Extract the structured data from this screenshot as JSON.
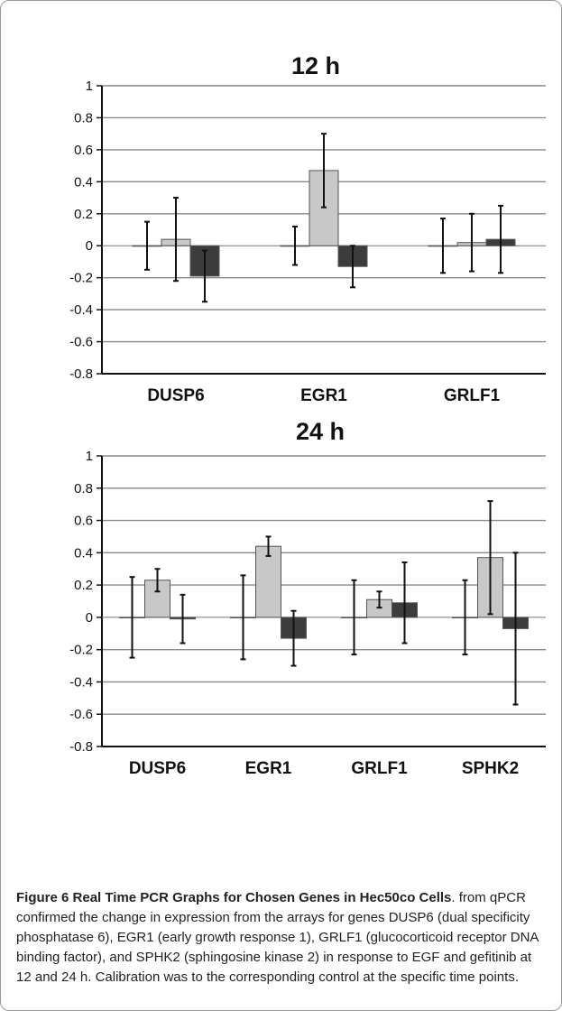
{
  "chart_data": [
    {
      "type": "bar",
      "title": "12 h",
      "categories": [
        "DUSP6",
        "EGR1",
        "GRLF1"
      ],
      "ylim": [
        -0.8,
        1
      ],
      "yticks": [
        "1",
        "0.8",
        "0.6",
        "0.4",
        "0.2",
        "0",
        "-0.2",
        "-0.4",
        "-0.6",
        "-0.8"
      ],
      "grid": true,
      "series": [
        {
          "values": [
            0,
            0,
            0
          ],
          "errors": [
            0.15,
            0.12,
            0.17
          ],
          "color": "#ffffff"
        },
        {
          "values": [
            0.04,
            0.47,
            0.02
          ],
          "errors": [
            0.26,
            0.23,
            0.18
          ],
          "color": "#c8c8c8"
        },
        {
          "values": [
            -0.19,
            -0.13,
            0.04
          ],
          "errors": [
            0.16,
            0.13,
            0.21
          ],
          "color": "#3c3c3c"
        }
      ]
    },
    {
      "type": "bar",
      "title": "24 h",
      "categories": [
        "DUSP6",
        "EGR1",
        "GRLF1",
        "SPHK2"
      ],
      "ylim": [
        -0.8,
        1
      ],
      "yticks": [
        "1",
        "0.8",
        "0.6",
        "0.4",
        "0.2",
        "0",
        "-0.2",
        "-0.4",
        "-0.6",
        "-0.8"
      ],
      "grid": true,
      "series": [
        {
          "values": [
            0,
            0,
            0,
            0
          ],
          "errors": [
            0.25,
            0.26,
            0.23,
            0.23
          ],
          "color": "#ffffff"
        },
        {
          "values": [
            0.23,
            0.44,
            0.11,
            0.37
          ],
          "errors": [
            0.07,
            0.06,
            0.05,
            0.35
          ],
          "color": "#c8c8c8"
        },
        {
          "values": [
            -0.01,
            -0.13,
            0.09,
            -0.07
          ],
          "errors": [
            0.15,
            0.17,
            0.25,
            0.47
          ],
          "color": "#3c3c3c"
        }
      ]
    }
  ],
  "caption": {
    "label": "Figure 6",
    "title": "Real Time PCR Graphs for Chosen Genes in Hec50co Cells",
    "text": ". from qPCR confirmed the change in expression from the arrays for genes DUSP6 (dual specificity phosphatase 6), EGR1 (early growth response 1), GRLF1 (glucocorticoid receptor DNA binding factor), and SPHK2 (sphingosine kinase 2) in response to EGF and gefitinib at 12 and 24 h. Calibration was to the corresponding control at the specific time points."
  }
}
